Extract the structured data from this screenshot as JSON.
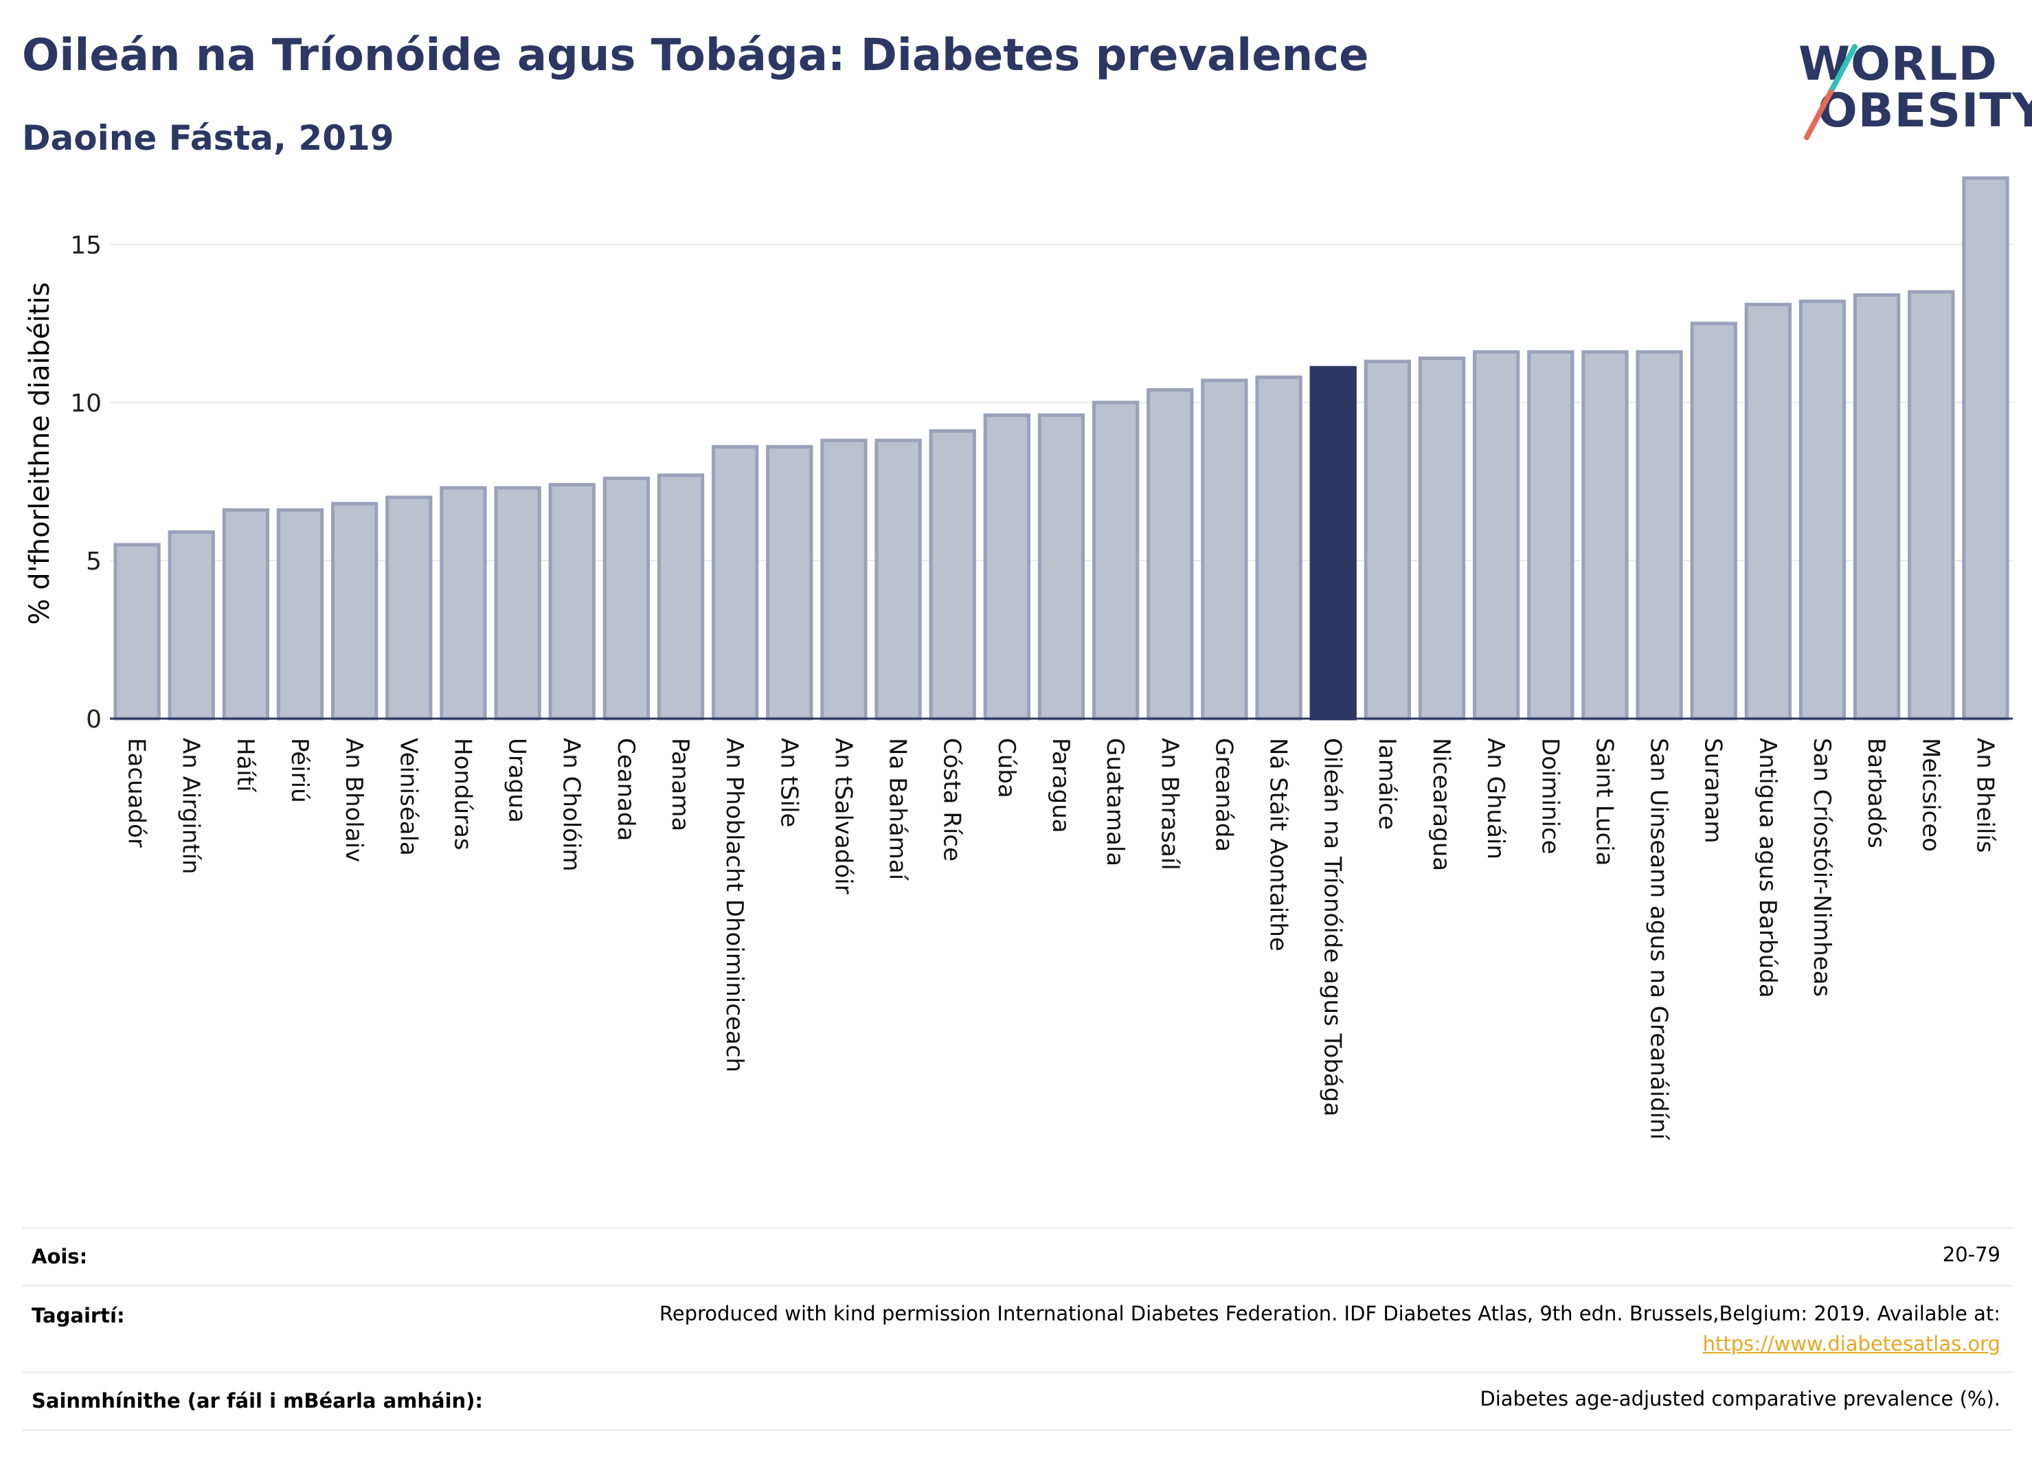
{
  "title": "Oileán na Tríonóide agus Tobága: Diabetes prevalence",
  "subtitle": "Daoine Fásta, 2019",
  "logo": {
    "line1": "WORLD",
    "line2": "OBESITY"
  },
  "colors": {
    "bar": "#bcc1cf",
    "bar_border": "#9aa1ba",
    "highlight": "#2d3764",
    "title": "#2d3764",
    "link": "#e5a822"
  },
  "chart_data": {
    "type": "bar",
    "ylabel": "% d'fhorleithne diaibéitis",
    "ylim": [
      0,
      17.3
    ],
    "yticks": [
      0,
      5,
      10,
      15
    ],
    "highlight": "Oileán na Tríonóide agus Tobága",
    "categories": [
      "Eacuadór",
      "An Airgintín",
      "Háítí",
      "Péiriú",
      "An Bholaiv",
      "Veiniséala",
      "Hondúras",
      "Uragua",
      "An Cholóim",
      "Ceanada",
      "Panama",
      "An Phoblacht Dhoiminiceach",
      "An tSile",
      "An tSalvadóir",
      "Na Bahámaí",
      "Cósta Ríce",
      "Cúba",
      "Paragua",
      "Guatamala",
      "An Bhrasaíl",
      "Greanáda",
      "Ná Stáit Aontaithe",
      "Oileán na Tríonóide agus Tobága",
      "Iamáice",
      "Nicearagua",
      "An Ghuáin",
      "Doiminice",
      "Saint Lucia",
      "San Uinseann agus na Greanáidíní",
      "Suranam",
      "Antigua agus Barbúda",
      "San Críostóir-Nimheas",
      "Barbadós",
      "Meicsiceo",
      "An Bheilís"
    ],
    "values": [
      5.5,
      5.9,
      6.6,
      6.6,
      6.8,
      7.0,
      7.3,
      7.3,
      7.4,
      7.6,
      7.7,
      8.6,
      8.6,
      8.8,
      8.8,
      9.1,
      9.6,
      9.6,
      10.0,
      10.4,
      10.7,
      10.8,
      11.1,
      11.3,
      11.4,
      11.6,
      11.6,
      11.6,
      11.6,
      12.5,
      13.1,
      13.2,
      13.4,
      13.5,
      17.1
    ]
  },
  "metadata": {
    "age": {
      "label": "Aois:",
      "value": "20-79"
    },
    "references": {
      "label": "Tagairtí:",
      "text": "Reproduced with kind permission International Diabetes Federation. IDF Diabetes Atlas, 9th edn. Brussels,Belgium: 2019. Available at:",
      "link": "https://www.diabetesatlas.org"
    },
    "definitions": {
      "label": "Sainmhínithe (ar fáil i mBéarla amháin):",
      "value": "Diabetes age-adjusted comparative prevalence (%)."
    }
  }
}
